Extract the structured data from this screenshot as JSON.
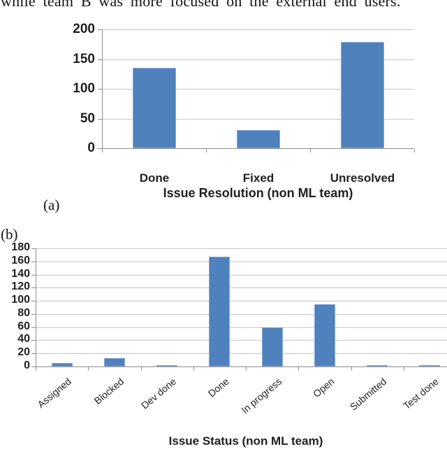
{
  "page": {
    "top_text": "while team B was more focused on the external end users.",
    "panel_labels": {
      "a": "(a)",
      "b": "(b)"
    }
  },
  "colors": {
    "bar_fill": "#4f81bd",
    "bar_border": "#87a9d6",
    "gridline": "#c6c6c6",
    "axis_line": "#8e8e8e",
    "tick_label": "#1f1f1f",
    "title": "#1f1f1f"
  },
  "chart_data": [
    {
      "type": "bar",
      "title": "Issue Resolution (non ML team)",
      "categories": [
        "Done",
        "Fixed",
        "Unresolved"
      ],
      "values": [
        135,
        30,
        179
      ],
      "xlabel": "",
      "ylabel": "",
      "ylim": [
        0,
        200
      ],
      "ytick_step": 50,
      "grid": true,
      "legend": false,
      "xlabel_rotation": 0
    },
    {
      "type": "bar",
      "title": "Issue Status (non ML team)",
      "categories": [
        "Assigned",
        "Blocked",
        "Dev done",
        "Done",
        "In progress",
        "Open",
        "Submitted",
        "Test done"
      ],
      "values": [
        5,
        13,
        2,
        167,
        60,
        95,
        2,
        2
      ],
      "xlabel": "",
      "ylabel": "",
      "ylim": [
        0,
        180
      ],
      "ytick_step": 20,
      "grid": true,
      "legend": false,
      "xlabel_rotation": -40
    }
  ]
}
